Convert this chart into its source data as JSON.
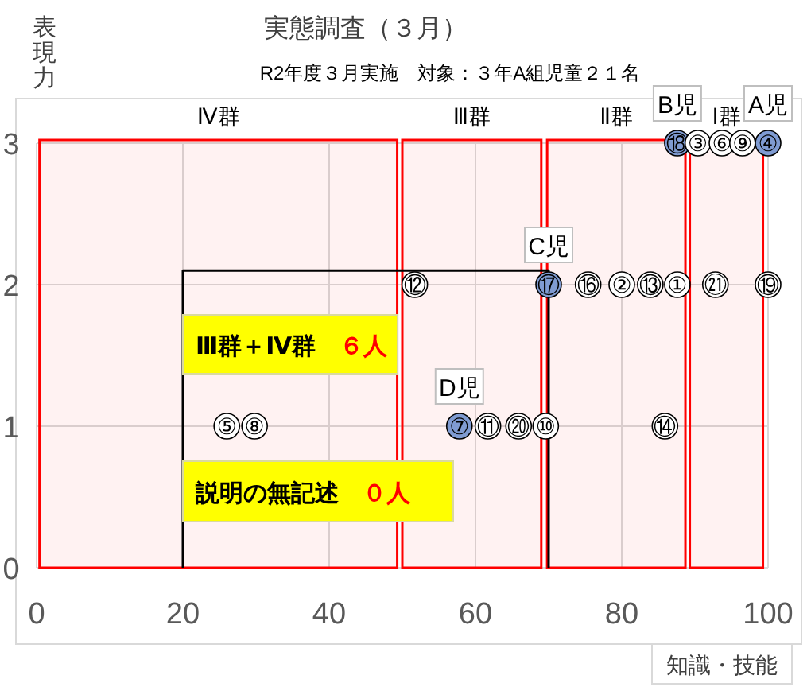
{
  "chart_data": {
    "type": "scatter",
    "title": "実態調査（３月）",
    "subtitle": "R2年度３月実施　対象：３年A組児童２１名",
    "xlabel": "知識・技能",
    "ylabel": "表現力",
    "xlim": [
      0,
      100
    ],
    "ylim": [
      0,
      3
    ],
    "xticks": [
      0,
      20,
      40,
      60,
      80,
      100
    ],
    "yticks": [
      0,
      1,
      2,
      3
    ],
    "grid": true,
    "series": [
      {
        "type": "scatter",
        "marker": "circle",
        "x": [
          87.6,
          90.4,
          93.7,
          96.5,
          100,
          51.7,
          70,
          75.4,
          80,
          83.9,
          87.6,
          92.8,
          100,
          26,
          29.8,
          57.8,
          61.7,
          65.9,
          69.6,
          85.9
        ],
        "values": [
          3,
          3,
          3,
          3,
          3,
          2,
          2,
          2,
          2,
          2,
          2,
          2,
          2,
          1,
          1,
          1,
          1,
          1,
          1,
          1
        ],
        "value_labels": [
          "⑱",
          "③",
          "⑥",
          "⑨",
          "④",
          "⑫",
          "⑰",
          "⑯",
          "②",
          "⑬",
          "①",
          "㉑",
          "⑲",
          "⑤",
          "⑧",
          "⑦",
          "⑪",
          "⑳",
          "⑩",
          "⑭"
        ],
        "colors": [
          "#7f9bd2",
          "#ffffff",
          "#ffffff",
          "#ffffff",
          "#7f9bd2",
          "#ffffff",
          "#7f9bd2",
          "#ffffff",
          "#ffffff",
          "#ffffff",
          "#ffffff",
          "#ffffff",
          "#ffffff",
          "#ffffff",
          "#ffffff",
          "#7f9bd2",
          "#ffffff",
          "#ffffff",
          "#ffffff",
          "#ffffff"
        ]
      },
      {
        "type": "line",
        "x": [
          20,
          20,
          70,
          70
        ],
        "values": [
          0,
          2.1,
          2.1,
          0
        ],
        "color": "#000000"
      }
    ],
    "bands": [
      {
        "axis": "x",
        "from": 0.4,
        "to": 49.3,
        "label": "Ⅳ群",
        "color": "#ff0000"
      },
      {
        "axis": "x",
        "from": 50,
        "to": 69,
        "label": "Ⅲ群",
        "color": "#ff0000"
      },
      {
        "axis": "x",
        "from": 69.8,
        "to": 88.7,
        "label": "Ⅱ群",
        "color": "#ff0000"
      },
      {
        "axis": "x",
        "from": 89.3,
        "to": 99.3,
        "label": "Ⅰ群",
        "color": "#ff0000"
      }
    ],
    "annotations": [
      {
        "text": "A児",
        "x": 100,
        "y": 3
      },
      {
        "text": "B児",
        "x": 87.6,
        "y": 3
      },
      {
        "text": "C児",
        "x": 70,
        "y": 2
      },
      {
        "text": "D児",
        "x": 57.8,
        "y": 1
      },
      "Ⅲ群＋Ⅳ群　６人",
      "説明の無記述　０人"
    ]
  }
}
